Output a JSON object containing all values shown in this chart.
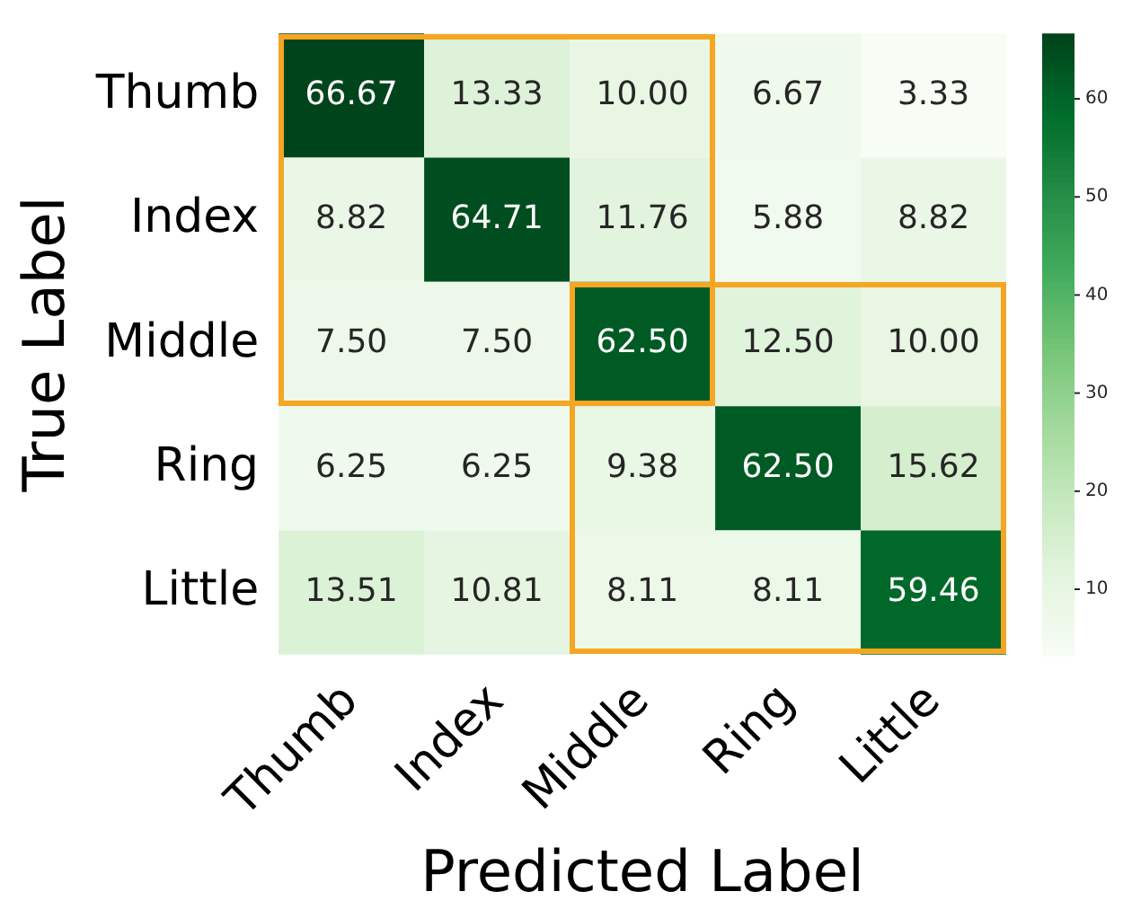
{
  "chart_data": {
    "type": "heatmap",
    "xlabel": "Predicted Label",
    "ylabel": "True Label",
    "categories": [
      "Thumb",
      "Index",
      "Middle",
      "Ring",
      "Little"
    ],
    "y_categories": [
      "Thumb",
      "Index",
      "Middle",
      "Ring",
      "Little"
    ],
    "cells": [
      [
        66.67,
        13.33,
        10.0,
        6.67,
        3.33
      ],
      [
        8.82,
        64.71,
        11.76,
        5.88,
        8.82
      ],
      [
        7.5,
        7.5,
        62.5,
        12.5,
        10.0
      ],
      [
        6.25,
        6.25,
        9.38,
        62.5,
        15.62
      ],
      [
        13.51,
        10.81,
        8.11,
        8.11,
        59.46
      ]
    ],
    "cell_labels": [
      [
        "66.67",
        "13.33",
        "10.00",
        "6.67",
        "3.33"
      ],
      [
        "8.82",
        "64.71",
        "11.76",
        "5.88",
        "8.82"
      ],
      [
        "7.50",
        "7.50",
        "62.50",
        "12.50",
        "10.00"
      ],
      [
        "6.25",
        "6.25",
        "9.38",
        "62.50",
        "15.62"
      ],
      [
        "13.51",
        "10.81",
        "8.11",
        "8.11",
        "59.46"
      ]
    ],
    "clim": [
      3.33,
      66.67
    ],
    "cticks": [
      10,
      20,
      30,
      40,
      50,
      60
    ]
  }
}
